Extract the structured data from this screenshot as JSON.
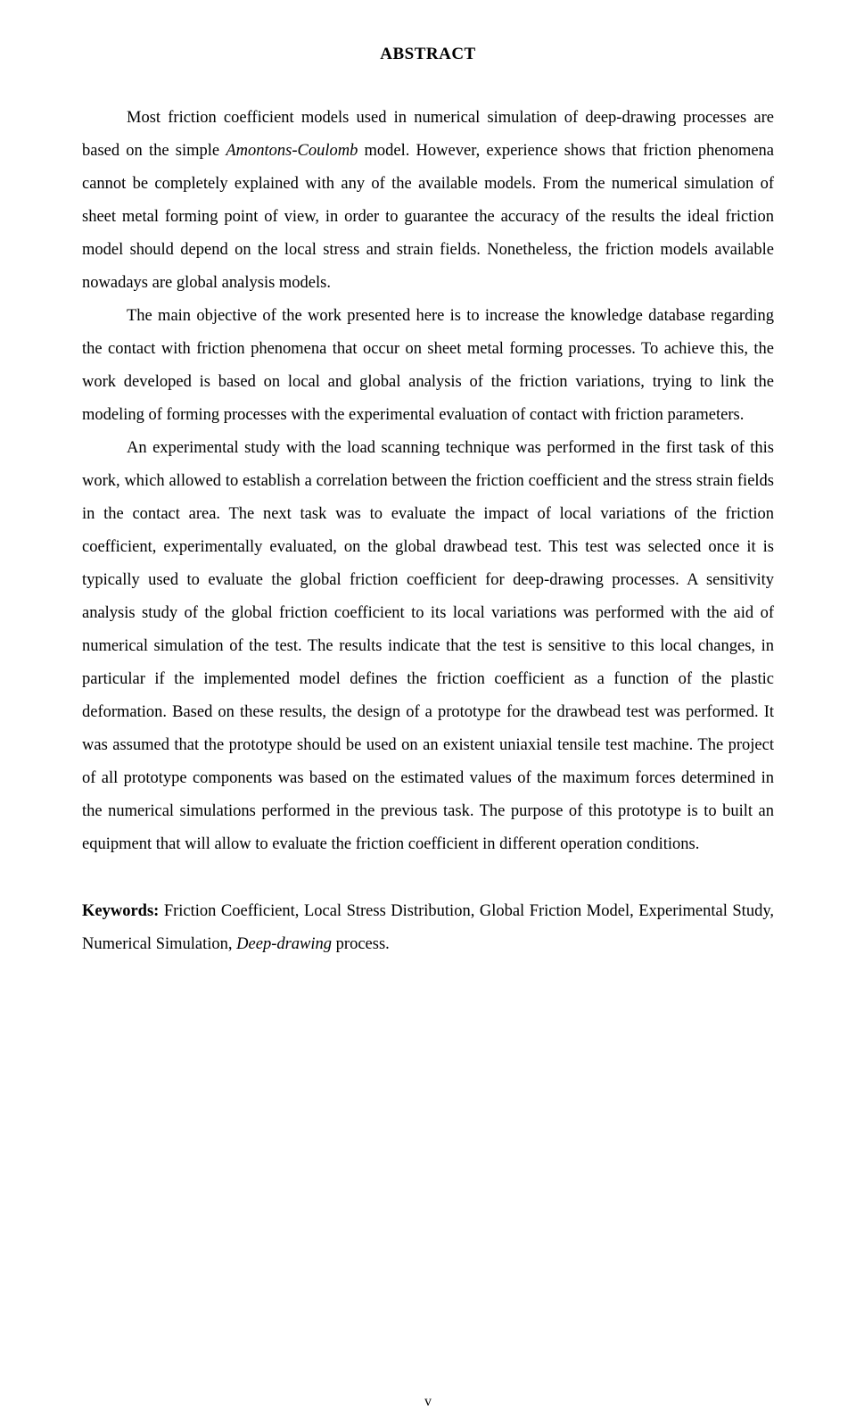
{
  "title": "ABSTRACT",
  "paragraphs": {
    "p1_part1": "Most friction coefficient models used in numerical simulation of deep-drawing processes are based on the simple ",
    "p1_italic1": "Amontons-Coulomb",
    "p1_part2": " model. However, experience shows that friction phenomena cannot be completely explained with any of the available models. From the numerical simulation of sheet metal forming point of view, in order to guarantee the accuracy of the results the ideal friction model should depend on the local stress and strain fields. Nonetheless, the friction models available nowadays are global analysis models.",
    "p2": "The main objective of the work presented here is to increase the knowledge database regarding the contact with friction phenomena that occur on sheet metal forming processes. To achieve this, the work developed is based on local and global analysis of the friction variations, trying to link the modeling of forming processes with the experimental evaluation of contact with friction parameters.",
    "p3": "An experimental study with the load scanning technique was performed in the first task of this work, which allowed to establish a correlation between the friction coefficient and the stress strain fields in the contact area. The next task was to evaluate the impact of local variations of the friction coefficient, experimentally evaluated, on the global drawbead test. This test was selected once it is typically used to evaluate the global friction coefficient for deep-drawing processes. A sensitivity analysis study of the global friction coefficient to its local variations was performed with the aid of numerical simulation of the test. The results indicate that the test is sensitive to this local changes, in particular if the implemented model defines the friction coefficient as a function of the plastic deformation. Based on these results, the design of a prototype for the drawbead test was performed. It was assumed that the prototype should be used on an existent uniaxial tensile test machine. The project of all prototype components was based on the estimated values of the maximum forces determined in the numerical simulations performed in the previous task. The purpose of this prototype is to built an equipment that will allow to evaluate the friction coefficient in different operation conditions."
  },
  "keywords": {
    "label": "Keywords:",
    "text_part1": " Friction Coefficient, Local Stress Distribution, Global Friction Model, Experimental Study, Numerical Simulation, ",
    "text_italic": "Deep-drawing",
    "text_part2": " process."
  },
  "page_number": "v"
}
